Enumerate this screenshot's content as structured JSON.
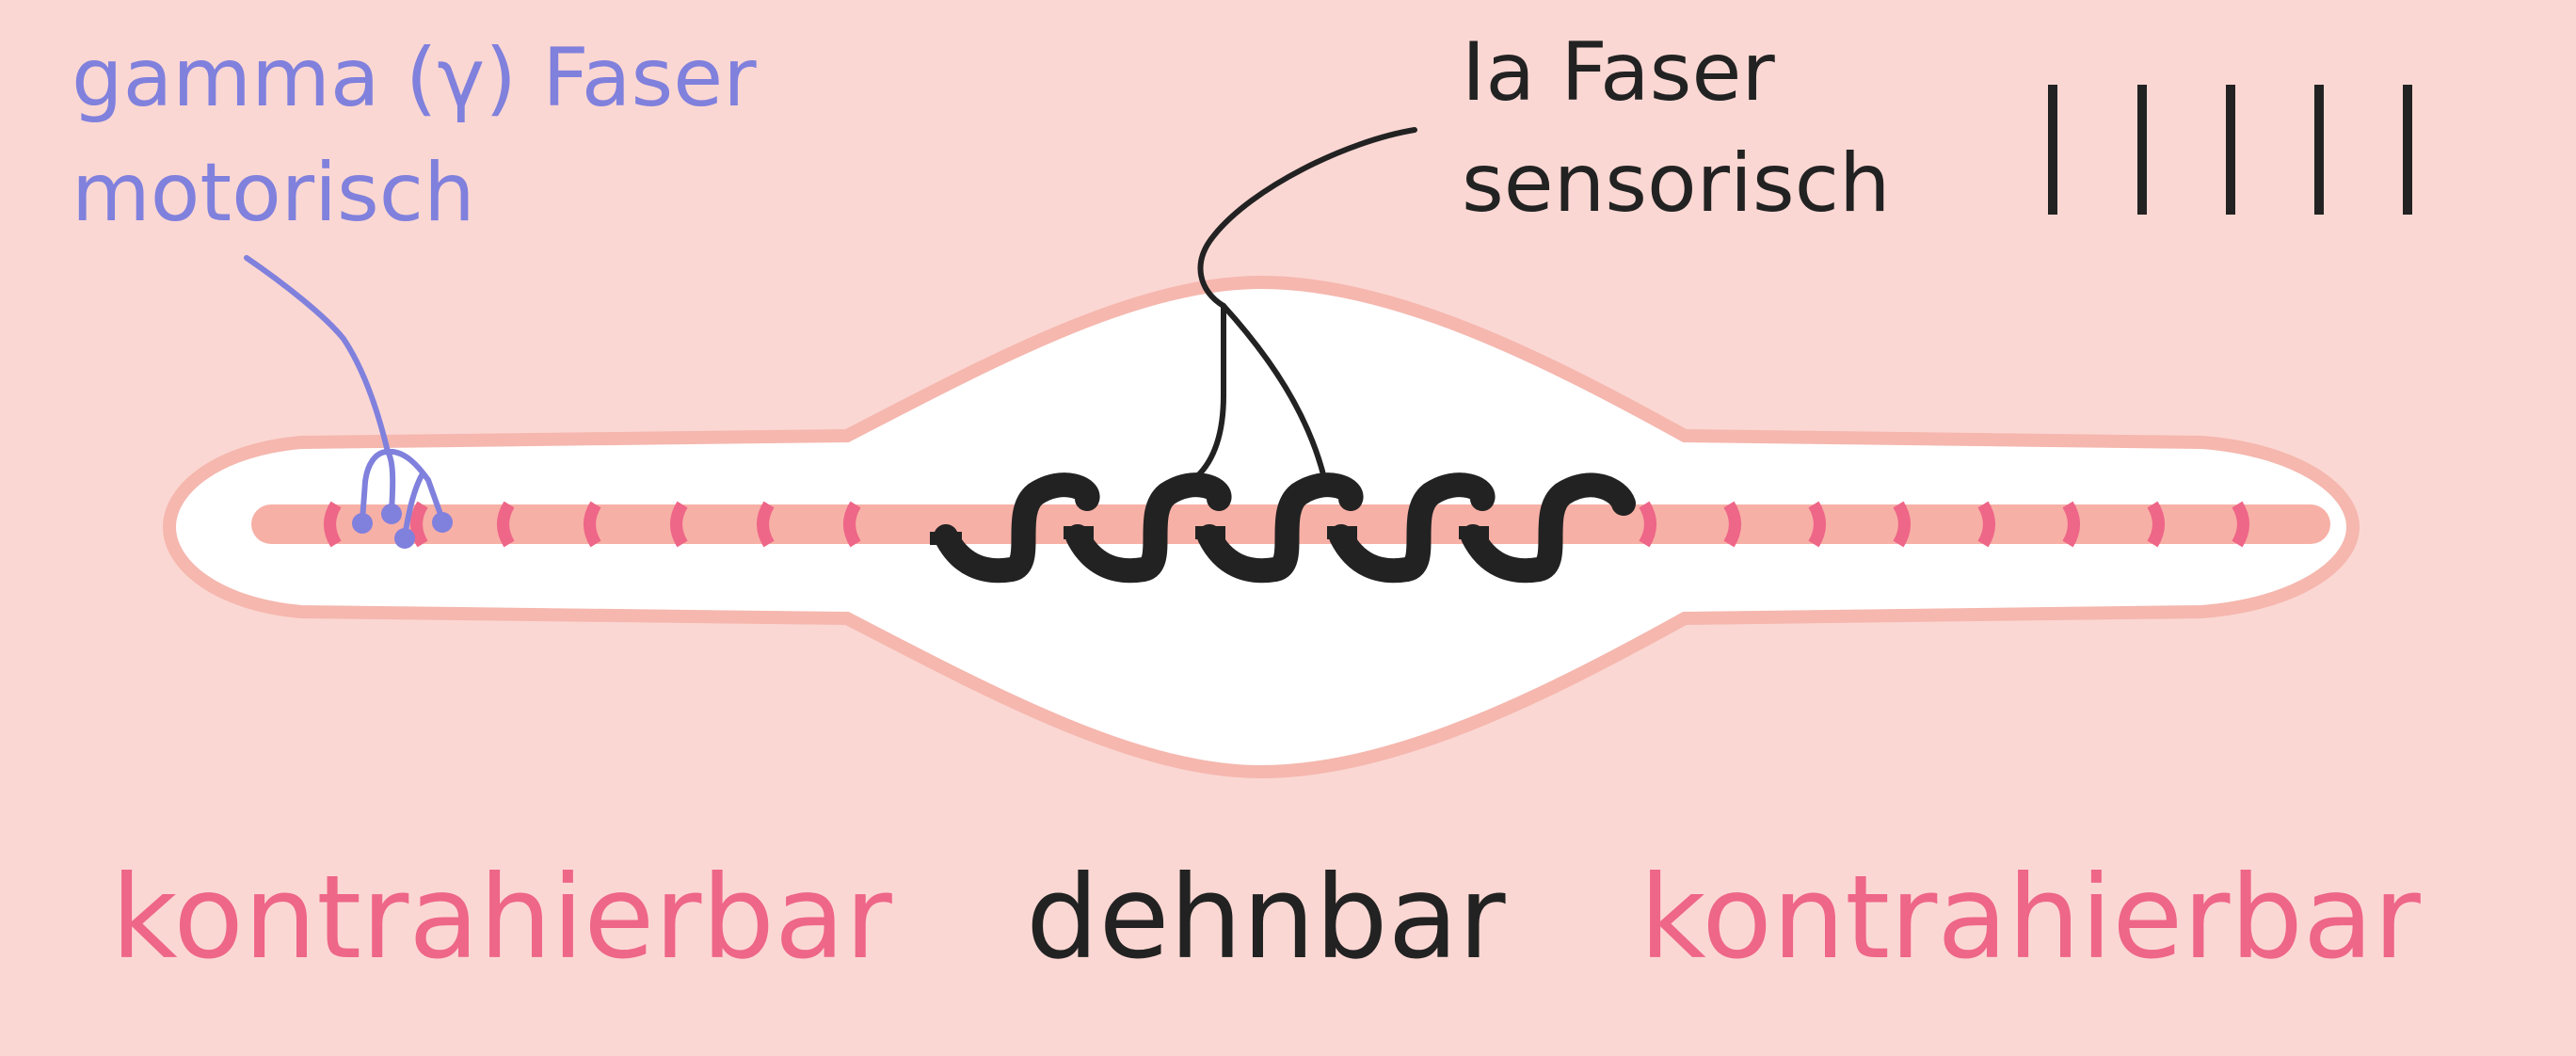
{
  "labels": {
    "gamma_fiber_line1": "gamma (γ) Faser",
    "gamma_fiber_line2": "motorisch",
    "ia_fiber_line1": "Ia Faser",
    "ia_fiber_line2": "sensorisch",
    "left_region": "kontrahierbar",
    "center_region": "dehnbar",
    "right_region": "kontrahierbar"
  },
  "colors": {
    "background": "#fbd7d3",
    "capsule_outline": "#f5b7ae",
    "capsule_fill": "#ffffff",
    "intrafusal_fiber": "#f7b0a6",
    "striation": "#ee6688",
    "gamma": "#8080dd",
    "ia": "#222222",
    "contractile_text": "#ee6688",
    "stretchable_text": "#222222"
  },
  "counts": {
    "impulse_bars": 5,
    "annulospiral_coils": 5
  }
}
